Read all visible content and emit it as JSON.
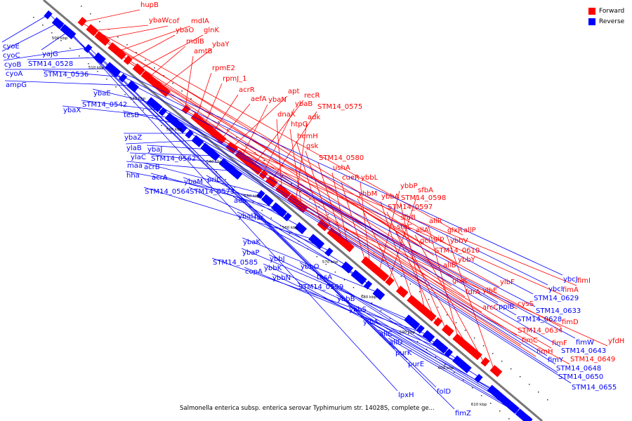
{
  "caption": "Salmonella enterica subsp. enterica serovar Typhimurium str. 14028S, complete ge...",
  "legend": [
    {
      "label": "Forward",
      "color": "#ff0000"
    },
    {
      "label": "Reverse",
      "color": "#0000ff"
    }
  ],
  "colors": {
    "forward": "#ff0000",
    "reverse": "#0000ff",
    "axis": "#777777"
  },
  "ruler": [
    "500 kbp",
    "510 kbp",
    "520 kbp",
    "530 kbp",
    "540 kbp",
    "550 kbp",
    "560 kbp",
    "570 kbp",
    "580 kbp",
    "590 kbp",
    "600 kbp",
    "610 kbp"
  ],
  "forward_labels": [
    "hupB",
    "ybaW",
    "cof",
    "mdlA",
    "ybaO",
    "glnK",
    "mdlB",
    "ybaY",
    "amtB",
    "rpmE2",
    "rpmJ_1",
    "acrR",
    "aefA",
    "apt",
    "ybaN",
    "recR",
    "ybaB",
    "STM14_0575",
    "dnaX",
    "adk",
    "htpG",
    "hemH",
    "gsk",
    "STM14_0580",
    "ushA",
    "cueR",
    "ybbL",
    "ybbP",
    "sfbA",
    "ybbM",
    "ybbA",
    "STM14_0598",
    "STM14_0597",
    "sfbB",
    "allR",
    "sfbC",
    "allA",
    "glxR",
    "allP",
    "gip",
    "ybbV",
    "gcl",
    "STM14_0610",
    "ybbY",
    "allB",
    "glxK",
    "ylbF",
    "fdrA",
    "ylbE",
    "arcC",
    "fimI",
    "fimA",
    "cysS",
    "fimD",
    "STM14_0634",
    "fimC",
    "fimF",
    "fimH",
    "yfdH",
    "STM14_0649"
  ],
  "reverse_labels": [
    "cyoE",
    "cyoC",
    "yajG",
    "cyoB",
    "STM14_0528",
    "cyoA",
    "STM14_0536",
    "ampG",
    "ybaE",
    "STM14_0542",
    "ybaX",
    "tesB",
    "ybaZ",
    "ylaB",
    "ybaJ",
    "ylaC",
    "STM14_0562",
    "maa",
    "acrB",
    "hha",
    "acrA",
    "ybaM",
    "priC",
    "STM14_0564",
    "STM14_0573",
    "aes",
    "ybaL",
    "fsr",
    "ybaK",
    "ybaP",
    "ybbJ",
    "STM14_0585",
    "ybbK",
    "copA",
    "ybbO",
    "ybbN",
    "tesA",
    "STM14_0599",
    "ybbB",
    "ybbS",
    "ylbA",
    "allC",
    "allD",
    "purK",
    "purE",
    "lpxH",
    "folD",
    "fimZ",
    "ybcJ",
    "ybcI",
    "STM14_0629",
    "ppiB",
    "STM14_0628",
    "STM14_0633",
    "fimW",
    "STM14_0643",
    "fimY",
    "STM14_0648",
    "STM14_0650",
    "STM14_0655"
  ]
}
